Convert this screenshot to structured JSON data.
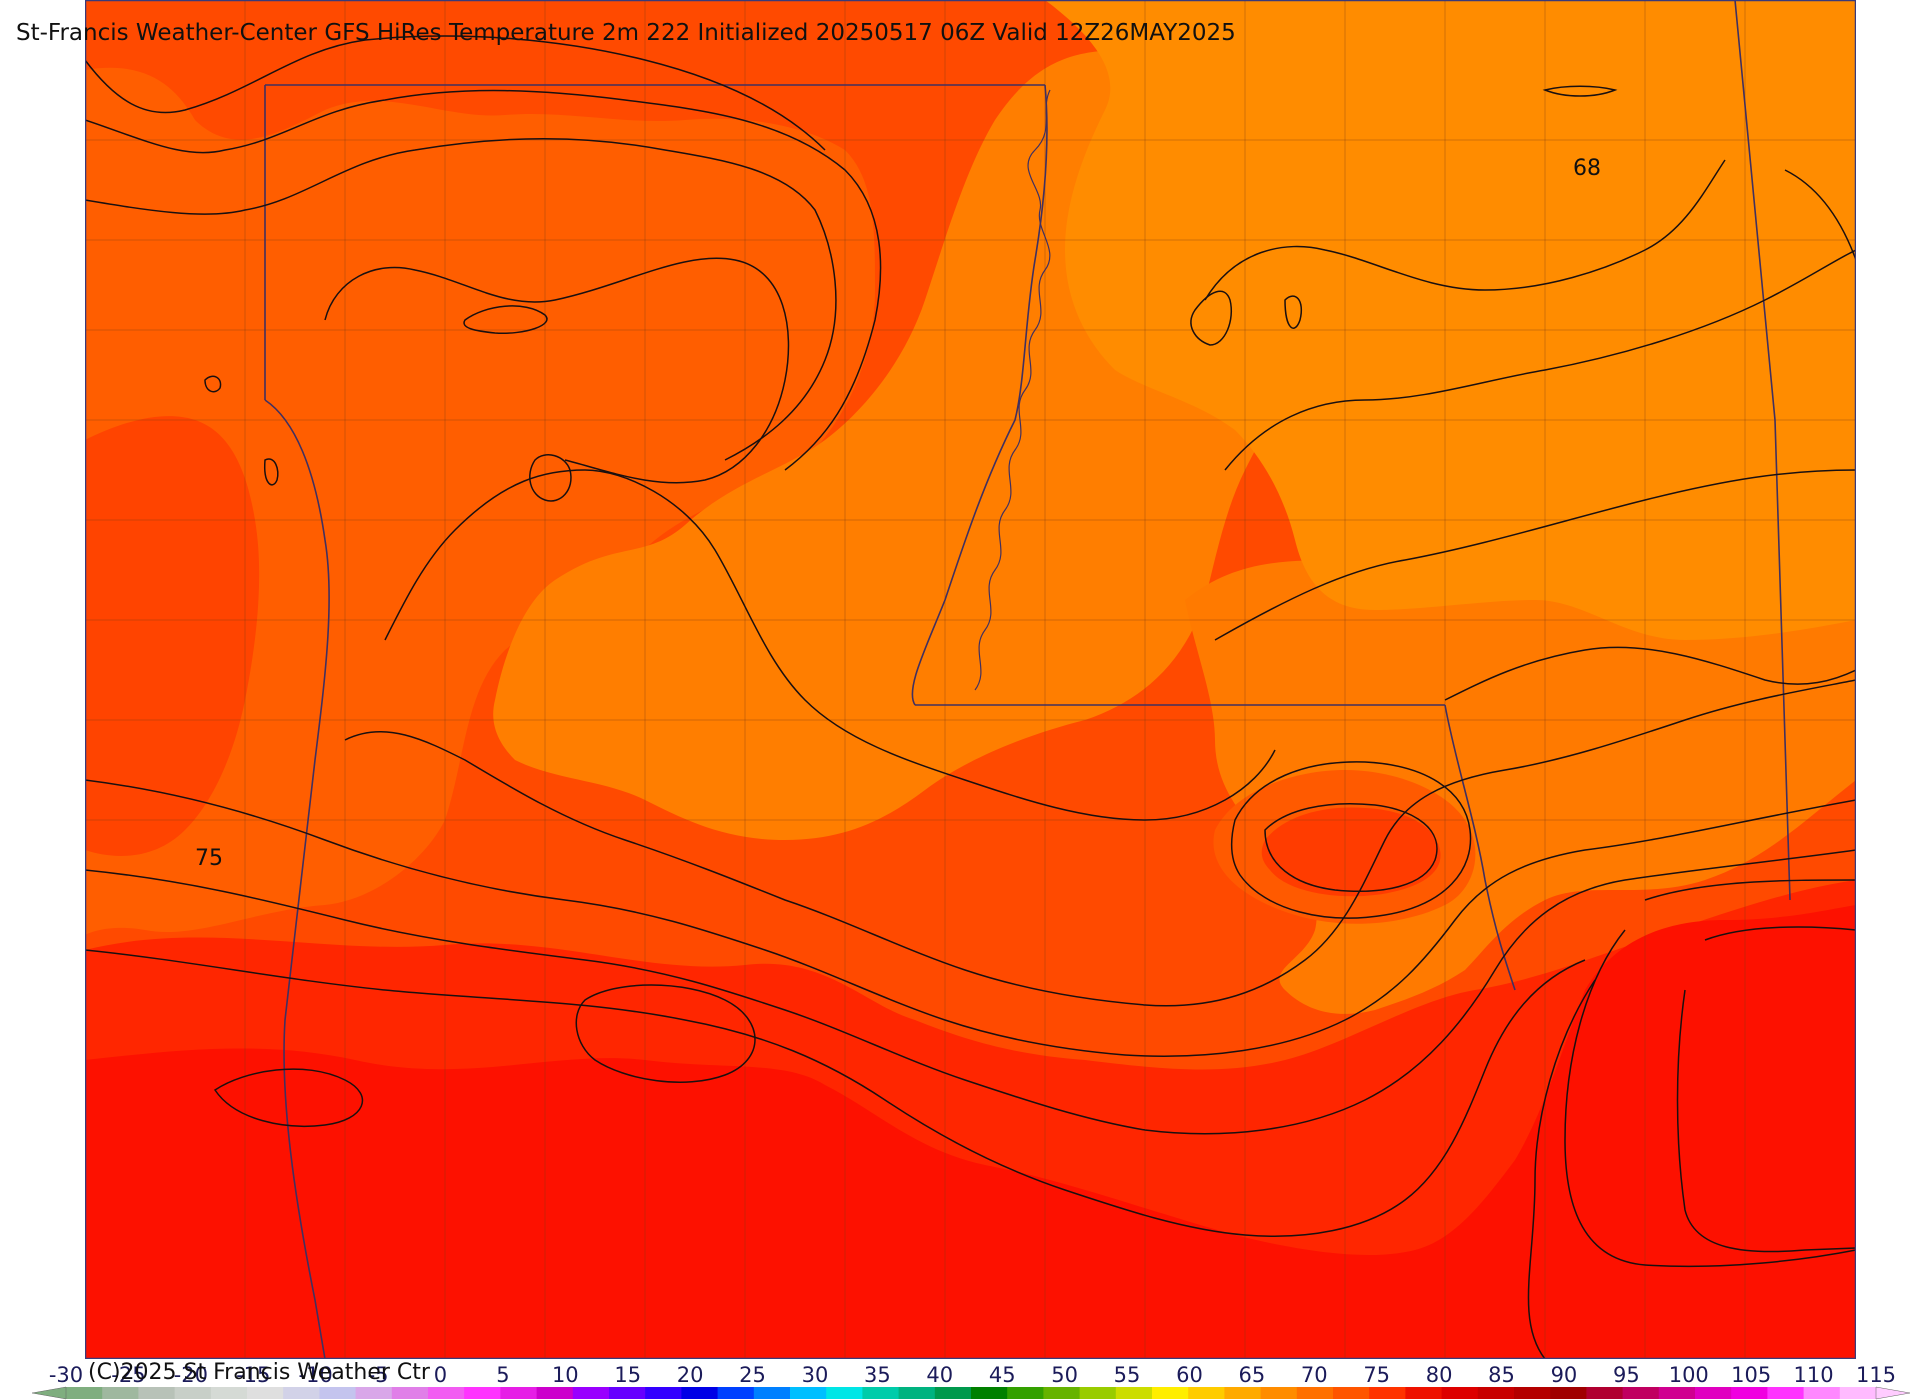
{
  "header": {
    "title": "St-Francis Weather-Center GFS HiRes Temperature 2m  222 Initialized 20250517 06Z Valid 12Z26MAY2025"
  },
  "map": {
    "contour_labels": [
      {
        "name": "label-68",
        "text": "68"
      },
      {
        "name": "label-75",
        "text": "75"
      }
    ],
    "fill_colors": {
      "band_65_70": "#ff8c00",
      "band_70_75": "#ff7800",
      "band_75_80": "#ff5a00",
      "band_80_85": "#ff3c00",
      "band_85_90": "#ff1a00",
      "band_90_95": "#f50a00"
    }
  },
  "colorbar": {
    "tick_labels": [
      "-30",
      "-25",
      "-20",
      "-15",
      "-10",
      "-5",
      "0",
      "5",
      "10",
      "15",
      "20",
      "25",
      "30",
      "35",
      "40",
      "45",
      "50",
      "55",
      "60",
      "65",
      "70",
      "75",
      "80",
      "85",
      "90",
      "95",
      "100",
      "105",
      "110",
      "115"
    ],
    "colors": [
      "#7fae7f",
      "#9fb89f",
      "#b8c2b8",
      "#c8cfc8",
      "#d5dad5",
      "#dfdfdf",
      "#d2d2e8",
      "#c4c4ee",
      "#d9a7e9",
      "#e07fe8",
      "#f25cf2",
      "#ff33ff",
      "#e61ee6",
      "#cc00cc",
      "#9900ff",
      "#6600ff",
      "#3300ff",
      "#0000e6",
      "#0040ff",
      "#0080ff",
      "#00bfff",
      "#00e6e6",
      "#00ccaa",
      "#00b380",
      "#00994d",
      "#008000",
      "#33a000",
      "#66b300",
      "#99cc00",
      "#ccdd00",
      "#ffee00",
      "#ffcc00",
      "#ffaa00",
      "#ff8c00",
      "#ff7000",
      "#ff5500",
      "#ff3300",
      "#ee1100",
      "#dd0000",
      "#c80000",
      "#b40000",
      "#a00000",
      "#b00030",
      "#c00060",
      "#d00090",
      "#e000c0",
      "#f000e0",
      "#ff33ff",
      "#ff88ff",
      "#ffbbff"
    ],
    "left_triangle_color": "#7fae7f",
    "right_triangle_color": "#ffccff"
  },
  "footer": {
    "copyright": "(C)2025 St Francis Weather Ctr"
  }
}
